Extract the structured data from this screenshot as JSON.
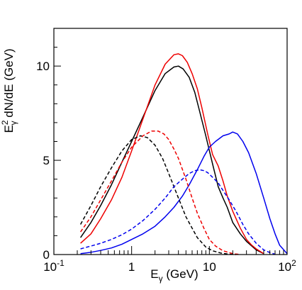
{
  "chart_data": {
    "type": "line",
    "title": "",
    "xlabel": {
      "base": "E",
      "sub": "γ",
      "rest": " (GeV)"
    },
    "ylabel": {
      "base": "E",
      "sup": "2",
      "sub": "γ",
      "rest": " dN/dE (GeV)"
    },
    "x_scale": "log",
    "xlim": [
      0.1,
      100
    ],
    "ylim": [
      0,
      12
    ],
    "x_ticks": [
      {
        "value": 0.1,
        "base": "10",
        "exp": "-1"
      },
      {
        "value": 1,
        "label": "1"
      },
      {
        "value": 10,
        "label": "10"
      },
      {
        "value": 100,
        "base": "10",
        "exp": "2"
      }
    ],
    "y_ticks": [
      {
        "value": 0,
        "label": "0"
      },
      {
        "value": 5,
        "label": "5"
      },
      {
        "value": 10,
        "label": "10"
      }
    ],
    "grid": false,
    "legend": "none",
    "series": [
      {
        "color": "#000000",
        "dash": false,
        "x": [
          0.22,
          0.3,
          0.4,
          0.55,
          0.75,
          1.0,
          1.4,
          2.0,
          2.7,
          3.5,
          4.0,
          4.6,
          5.5,
          6.5,
          7.5,
          9.0,
          11,
          13,
          15,
          17,
          20,
          25,
          30,
          40,
          50
        ],
        "y": [
          0.9,
          1.7,
          2.6,
          3.7,
          4.9,
          6.0,
          7.3,
          8.7,
          9.6,
          9.95,
          10.0,
          9.85,
          9.4,
          8.6,
          7.6,
          6.3,
          4.8,
          3.6,
          3.0,
          2.5,
          1.7,
          1.1,
          0.7,
          0.25,
          0.05
        ]
      },
      {
        "color": "#ee0000",
        "dash": false,
        "x": [
          0.22,
          0.3,
          0.4,
          0.55,
          0.75,
          1.0,
          1.4,
          2.0,
          2.7,
          3.5,
          4.0,
          4.5,
          5.2,
          6.0,
          7.0,
          8.0,
          9.5,
          11,
          13,
          15,
          17,
          20,
          25,
          30,
          35,
          40,
          50
        ],
        "y": [
          0.6,
          1.1,
          1.9,
          2.9,
          4.1,
          5.5,
          7.2,
          9.0,
          10.1,
          10.6,
          10.65,
          10.55,
          10.2,
          9.6,
          8.8,
          7.8,
          6.4,
          5.3,
          4.7,
          3.9,
          3.1,
          2.3,
          1.4,
          0.8,
          0.5,
          0.3,
          0.05
        ]
      },
      {
        "color": "#0000ee",
        "dash": false,
        "x": [
          0.22,
          0.3,
          0.4,
          0.55,
          0.75,
          1.0,
          1.4,
          2.0,
          2.7,
          3.5,
          4.5,
          5.5,
          7.0,
          8.5,
          10,
          12,
          15,
          18,
          20,
          23,
          27,
          32,
          40,
          50,
          60,
          70,
          80,
          100
        ],
        "y": [
          0.05,
          0.12,
          0.22,
          0.35,
          0.55,
          0.8,
          1.1,
          1.5,
          2.0,
          2.5,
          3.1,
          3.7,
          4.5,
          5.2,
          5.7,
          6.0,
          6.3,
          6.4,
          6.5,
          6.4,
          6.0,
          5.4,
          4.3,
          3.0,
          1.9,
          1.1,
          0.5,
          0.05
        ]
      },
      {
        "color": "#000000",
        "dash": true,
        "x": [
          0.22,
          0.3,
          0.4,
          0.55,
          0.75,
          1.0,
          1.3,
          1.6,
          2.0,
          2.5,
          3.0,
          4.0,
          5.0,
          6.0,
          7.0,
          9.0,
          11,
          14,
          18,
          22
        ],
        "y": [
          1.6,
          2.6,
          3.6,
          4.6,
          5.5,
          6.1,
          6.3,
          6.2,
          5.8,
          5.1,
          4.3,
          3.0,
          2.0,
          1.4,
          0.9,
          0.4,
          0.2,
          0.08,
          0.02,
          0
        ]
      },
      {
        "color": "#ee0000",
        "dash": true,
        "x": [
          0.22,
          0.3,
          0.4,
          0.55,
          0.75,
          1.0,
          1.4,
          1.8,
          2.2,
          2.6,
          3.0,
          3.5,
          4.0,
          5.0,
          6.0,
          7.0,
          8.5,
          10,
          12,
          15,
          20,
          25
        ],
        "y": [
          1.2,
          2.0,
          2.9,
          3.9,
          4.9,
          5.7,
          6.3,
          6.55,
          6.55,
          6.4,
          6.1,
          5.6,
          5.1,
          4.0,
          3.0,
          2.2,
          1.4,
          0.8,
          0.45,
          0.2,
          0.05,
          0
        ]
      },
      {
        "color": "#0000ee",
        "dash": true,
        "x": [
          0.22,
          0.3,
          0.4,
          0.55,
          0.75,
          1.0,
          1.4,
          2.0,
          2.7,
          3.5,
          4.5,
          5.5,
          6.5,
          7.5,
          8.5,
          9.5,
          11,
          13,
          15,
          18,
          22,
          27,
          32,
          40,
          50,
          60,
          70
        ],
        "y": [
          0.3,
          0.45,
          0.6,
          0.8,
          1.05,
          1.35,
          1.8,
          2.4,
          3.0,
          3.6,
          4.0,
          4.3,
          4.45,
          4.5,
          4.45,
          4.35,
          4.1,
          3.8,
          3.4,
          2.9,
          2.3,
          1.6,
          1.1,
          0.6,
          0.25,
          0.1,
          0.02
        ]
      }
    ]
  }
}
